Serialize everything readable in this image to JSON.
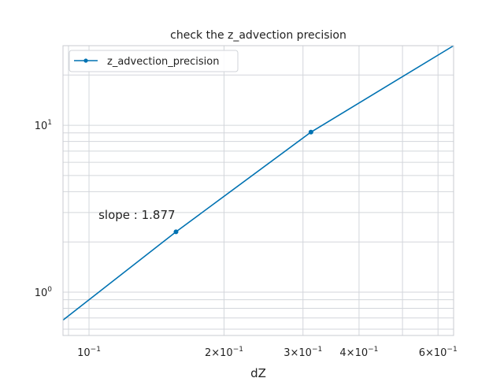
{
  "chart_data": {
    "type": "line",
    "title": "check the z_advection precision",
    "xlabel": "dZ",
    "ylabel": "",
    "xscale": "log",
    "yscale": "log",
    "xlim": [
      0.0875,
      0.65
    ],
    "ylim": [
      0.55,
      30
    ],
    "grid": true,
    "legend_position": "top-left",
    "x_ticks": [
      {
        "value": 0.1,
        "label": "10",
        "exp": "−1",
        "prefix": ""
      },
      {
        "value": 0.2,
        "label": "10",
        "exp": "−1",
        "prefix": "2×"
      },
      {
        "value": 0.3,
        "label": "10",
        "exp": "−1",
        "prefix": "3×"
      },
      {
        "value": 0.4,
        "label": "10",
        "exp": "−1",
        "prefix": "4×"
      },
      {
        "value": 0.6,
        "label": "10",
        "exp": "−1",
        "prefix": "6×"
      }
    ],
    "y_ticks": [
      {
        "value": 1,
        "label": "10",
        "exp": "0"
      },
      {
        "value": 10,
        "label": "10",
        "exp": "1"
      }
    ],
    "series": [
      {
        "name": "z_advection_precision",
        "color": "#0072b2",
        "x": [
          0.0875,
          0.1563,
          0.3125,
          0.65
        ],
        "y": [
          0.68,
          2.3,
          9.1,
          30.0
        ],
        "markers_x": [
          0.1563,
          0.3125
        ]
      }
    ],
    "annotations": [
      {
        "text": "slope : 1.877",
        "x": 0.105,
        "y": 2.75
      }
    ]
  }
}
